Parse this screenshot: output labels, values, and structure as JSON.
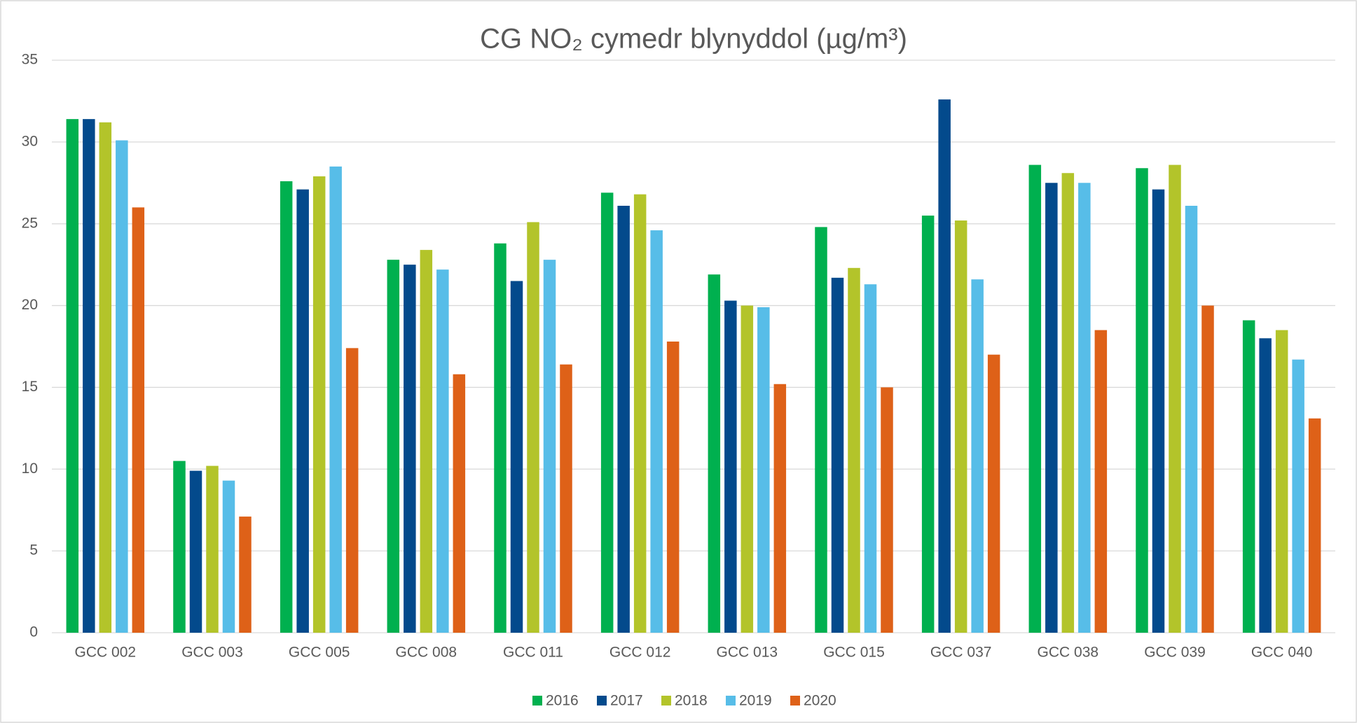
{
  "chart_data": {
    "type": "bar",
    "title": "CG NO₂ cymedr blynyddol  (µg/m³)",
    "categories": [
      "GCC 002",
      "GCC 003",
      "GCC 005",
      "GCC 008",
      "GCC 011",
      "GCC 012",
      "GCC 013",
      "GCC 015",
      "GCC 037",
      "GCC 038",
      "GCC 039",
      "GCC 040"
    ],
    "series": [
      {
        "name": "2016",
        "color": "#00b04f",
        "values": [
          31.4,
          10.5,
          27.6,
          22.8,
          23.8,
          26.9,
          21.9,
          24.8,
          25.5,
          28.6,
          28.4,
          19.1
        ]
      },
      {
        "name": "2017",
        "color": "#034a8c",
        "values": [
          31.4,
          9.9,
          27.1,
          22.5,
          21.5,
          26.1,
          20.3,
          21.7,
          32.6,
          27.5,
          27.1,
          18.0
        ]
      },
      {
        "name": "2018",
        "color": "#b3c42a",
        "values": [
          31.2,
          10.2,
          27.9,
          23.4,
          25.1,
          26.8,
          20.0,
          22.3,
          25.2,
          28.1,
          28.6,
          18.5
        ]
      },
      {
        "name": "2019",
        "color": "#57bde8",
        "values": [
          30.1,
          9.3,
          28.5,
          22.2,
          22.8,
          24.6,
          19.9,
          21.3,
          21.6,
          27.5,
          26.1,
          16.7
        ]
      },
      {
        "name": "2020",
        "color": "#de6118",
        "values": [
          26.0,
          7.1,
          17.4,
          15.8,
          16.4,
          17.8,
          15.2,
          15.0,
          17.0,
          18.5,
          20.0,
          13.1
        ]
      }
    ],
    "ylim": [
      0,
      35
    ],
    "yticks": [
      0,
      5,
      10,
      15,
      20,
      25,
      30,
      35
    ],
    "grid": true,
    "legend": "bottom"
  }
}
